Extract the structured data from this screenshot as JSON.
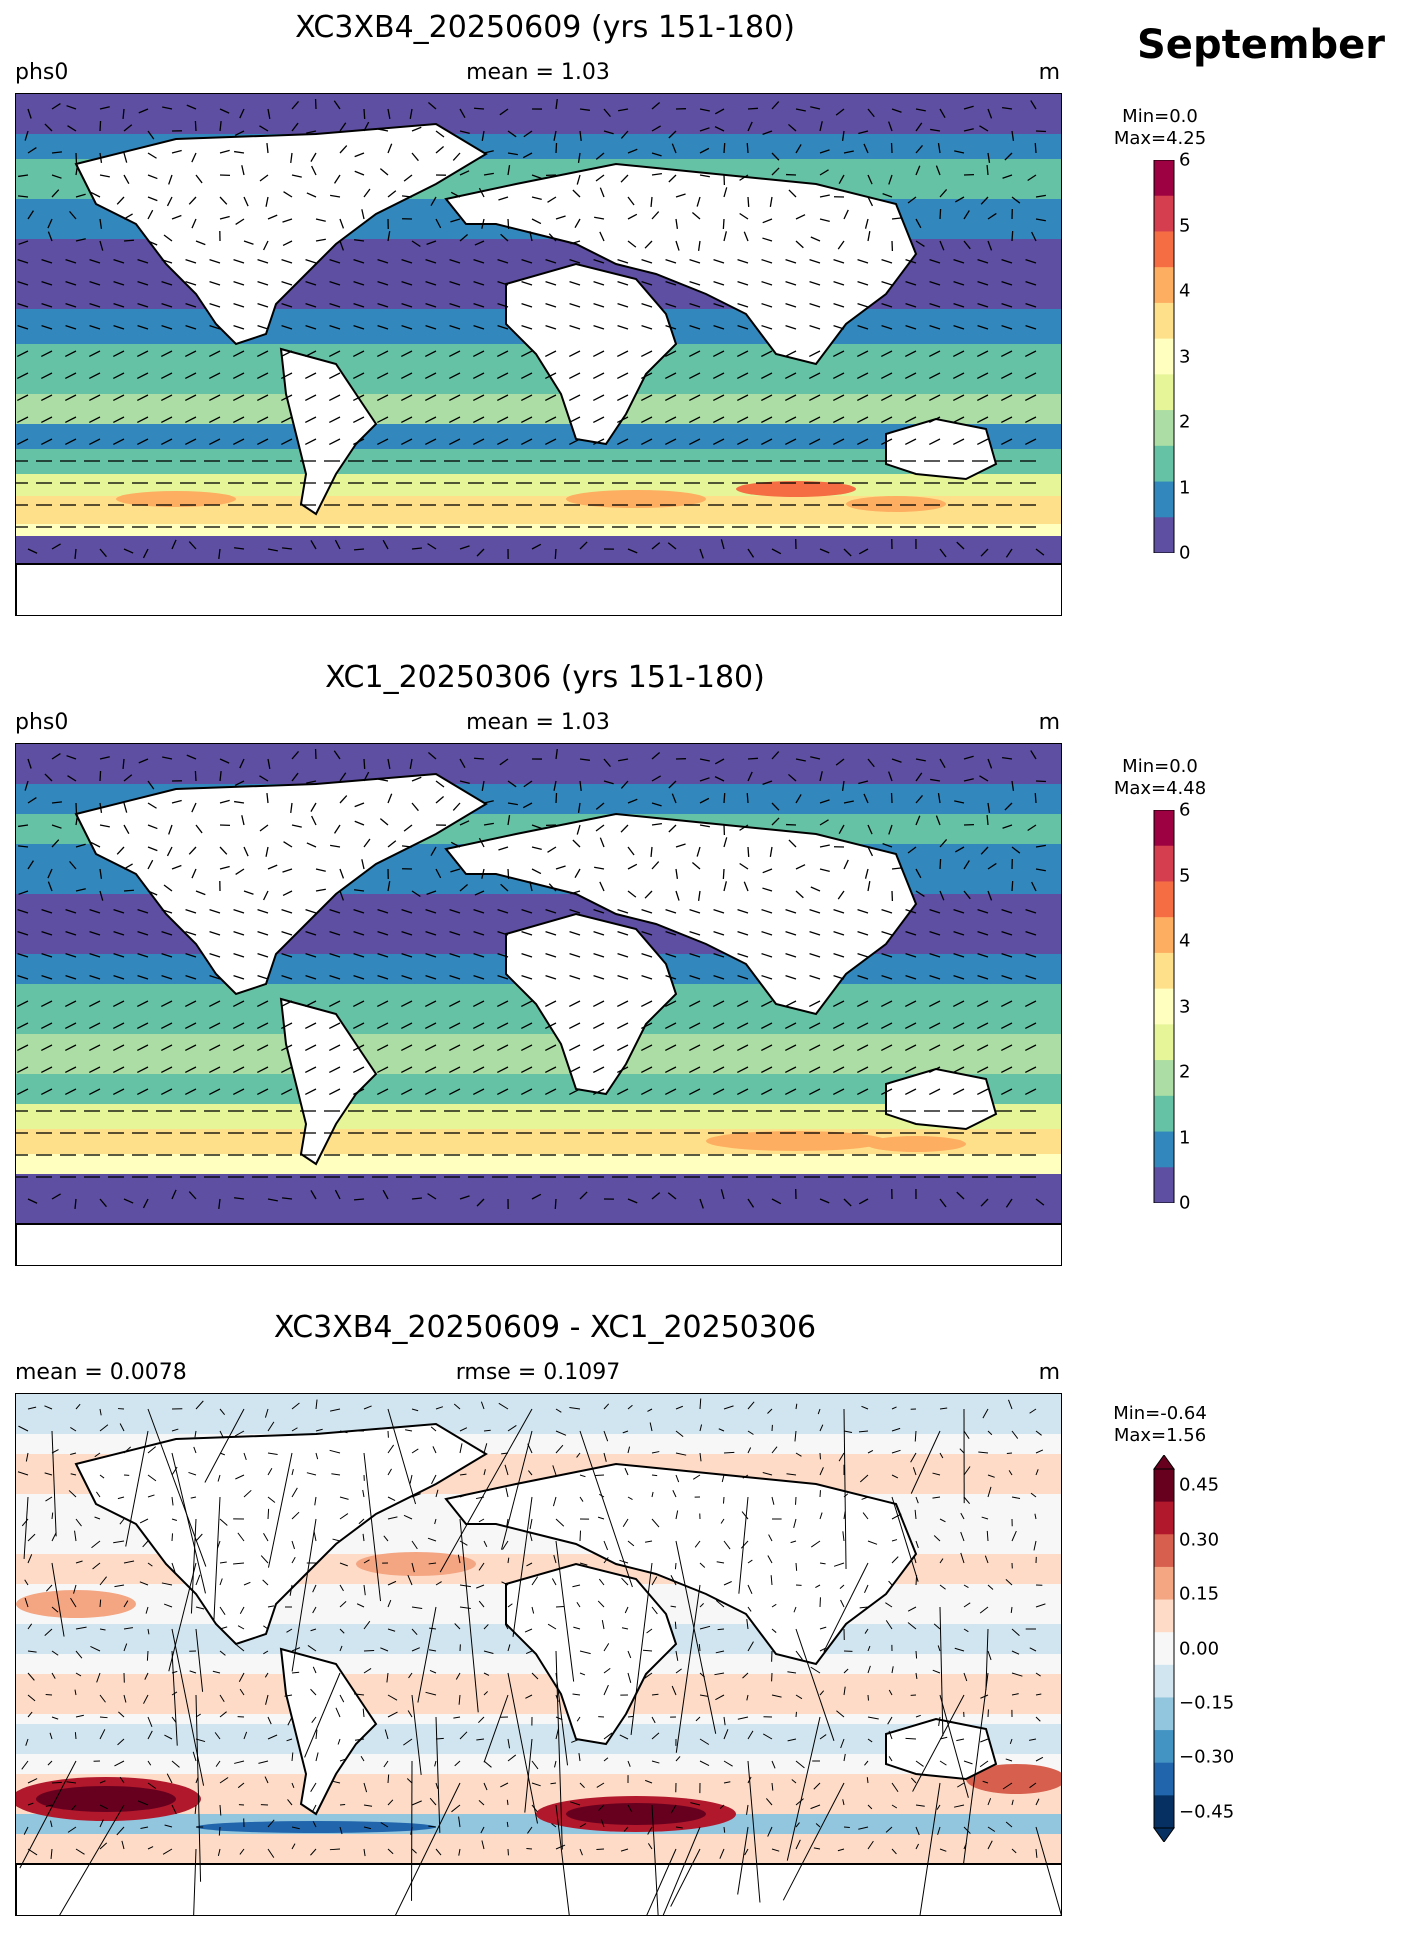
{
  "month": "September",
  "panels": [
    {
      "title": "XC3XB4_20250609 (yrs 151-180)",
      "left_label": "phs0",
      "center_label": "mean = 1.03",
      "right_label": "m",
      "cbar": {
        "min_label": "Min=0.0",
        "max_label": "Max=4.25",
        "ticks": [
          "6",
          "5",
          "4",
          "3",
          "2",
          "1",
          "0"
        ],
        "colors": [
          "#9e0142",
          "#d53e4f",
          "#f46d43",
          "#fdae61",
          "#fee08b",
          "#ffffbf",
          "#e6f598",
          "#abdda4",
          "#66c2a5",
          "#3288bd",
          "#5e4fa2"
        ]
      }
    },
    {
      "title": "XC1_20250306 (yrs 151-180)",
      "left_label": "phs0",
      "center_label": "mean = 1.03",
      "right_label": "m",
      "cbar": {
        "min_label": "Min=0.0",
        "max_label": "Max=4.48",
        "ticks": [
          "6",
          "5",
          "4",
          "3",
          "2",
          "1",
          "0"
        ],
        "colors": [
          "#9e0142",
          "#d53e4f",
          "#f46d43",
          "#fdae61",
          "#fee08b",
          "#ffffbf",
          "#e6f598",
          "#abdda4",
          "#66c2a5",
          "#3288bd",
          "#5e4fa2"
        ]
      }
    },
    {
      "title": "XC3XB4_20250609 - XC1_20250306",
      "left_label": "mean = 0.0078",
      "center_label": "rmse = 0.1097",
      "right_label": "m",
      "cbar": {
        "min_label": "Min=-0.64",
        "max_label": "Max=1.56",
        "ticks": [
          "0.45",
          "0.30",
          "0.15",
          "0.00",
          "−0.15",
          "−0.30",
          "−0.45"
        ],
        "colors": [
          "#67001f",
          "#b2182b",
          "#d6604d",
          "#f4a582",
          "#fddbc7",
          "#f7f7f7",
          "#d1e5f0",
          "#92c5de",
          "#4393c3",
          "#2166ac",
          "#053061"
        ]
      }
    }
  ],
  "legend_colors": {
    "land": "#ffffff",
    "seq_low": "#5e4fa2",
    "seq_high": "#9e0142",
    "div_neg": "#2166ac",
    "div_pos": "#b2182b"
  }
}
